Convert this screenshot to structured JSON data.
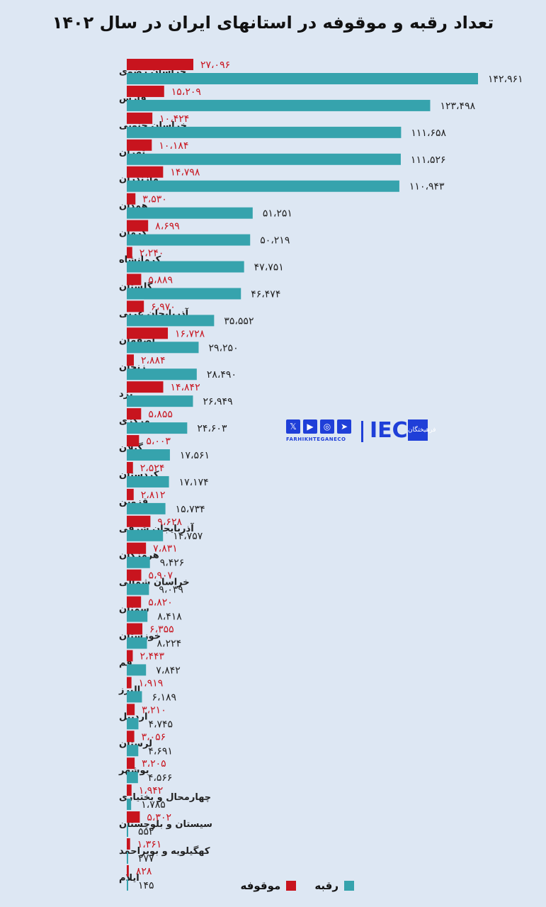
{
  "chart_data": {
    "type": "bar",
    "orientation": "horizontal",
    "title": "تعداد رقبه و موقوفه در استانهای ایران در سال ۱۴۰۲",
    "categories": [
      "خراسان رضوی",
      "فارس",
      "خراسان جنوبی",
      "تهران",
      "مازندران",
      "همدان",
      "کرمان",
      "کرمانشاه",
      "گلستان",
      "آذربایجان غربی",
      "اصفهان",
      "زنجان",
      "یزد",
      "مرکزی",
      "گیلان",
      "کردستان",
      "قزوین",
      "آذربایجان شرقی",
      "هرمزگان",
      "خراسان شمالی",
      "سمنان",
      "خوزستان",
      "قم",
      "البرز",
      "اردبیل",
      "لرستان",
      "بوشهر",
      "چهارمحال و بختیاری",
      "سیستان و بلوچستان",
      "کهگیلویه و بویراحمد",
      "ایلام"
    ],
    "series": [
      {
        "name": "موقوفه",
        "color": "#c8141e",
        "values": [
          27096,
          15209,
          10424,
          10184,
          14798,
          3530,
          8699,
          2240,
          5889,
          6970,
          16728,
          2884,
          14842,
          5855,
          5003,
          2524,
          2812,
          9628,
          7831,
          5907,
          5820,
          6355,
          2443,
          1919,
          3210,
          3056,
          3205,
          1942,
          5302,
          1361,
          828
        ],
        "labels": [
          "۲۷،۰۹۶",
          "۱۵،۲۰۹",
          "۱۰،۴۲۴",
          "۱۰،۱۸۴",
          "۱۴،۷۹۸",
          "۳،۵۳۰",
          "۸،۶۹۹",
          "۲،۲۴۰",
          "۵،۸۸۹",
          "۶،۹۷۰",
          "۱۶،۷۲۸",
          "۲،۸۸۴",
          "۱۴،۸۴۲",
          "۵،۸۵۵",
          "۵،۰۰۳",
          "۲،۵۲۴",
          "۲،۸۱۲",
          "۹،۶۲۸",
          "۷،۸۳۱",
          "۵،۹۰۷",
          "۵،۸۲۰",
          "۶،۳۵۵",
          "۲،۴۴۳",
          "۱،۹۱۹",
          "۳،۲۱۰",
          "۳،۰۵۶",
          "۳،۲۰۵",
          "۱،۹۴۲",
          "۵،۳۰۲",
          "۱،۳۶۱",
          "۸۲۸"
        ]
      },
      {
        "name": "رقبه",
        "color": "#36a3ad",
        "values": [
          142961,
          123498,
          111658,
          111526,
          110943,
          51251,
          50219,
          47751,
          46474,
          35552,
          29250,
          28490,
          26949,
          24603,
          17561,
          17174,
          15734,
          14757,
          9426,
          9039,
          8418,
          8224,
          7842,
          6189,
          4745,
          4691,
          4566,
          1785,
          552,
          277,
          145
        ],
        "labels": [
          "۱۴۲،۹۶۱",
          "۱۲۳،۴۹۸",
          "۱۱۱،۶۵۸",
          "۱۱۱،۵۲۶",
          "۱۱۰،۹۴۳",
          "۵۱،۲۵۱",
          "۵۰،۲۱۹",
          "۴۷،۷۵۱",
          "۴۶،۴۷۴",
          "۳۵،۵۵۲",
          "۲۹،۲۵۰",
          "۲۸،۴۹۰",
          "۲۶،۹۴۹",
          "۲۴،۶۰۳",
          "۱۷،۵۶۱",
          "۱۷،۱۷۴",
          "۱۵،۷۳۴",
          "۱۴،۷۵۷",
          "۹،۴۲۶",
          "۹،۰۳۹",
          "۸،۴۱۸",
          "۸،۲۲۴",
          "۷،۸۴۲",
          "۶،۱۸۹",
          "۴،۷۴۵",
          "۴،۶۹۱",
          "۴،۵۶۶",
          "۱،۷۸۵",
          "۵۵۲",
          "۲۷۷",
          "۱۴۵"
        ]
      }
    ],
    "legend": {
      "position": "bottom"
    },
    "grid": false
  },
  "logo": {
    "brand_text": "FARHIKHTEGANECO",
    "brand_mark": "IEC",
    "seal_text": "فرهیختگان",
    "social_icons": [
      "x-icon",
      "youtube-icon",
      "instagram-icon",
      "telegram-icon"
    ]
  }
}
